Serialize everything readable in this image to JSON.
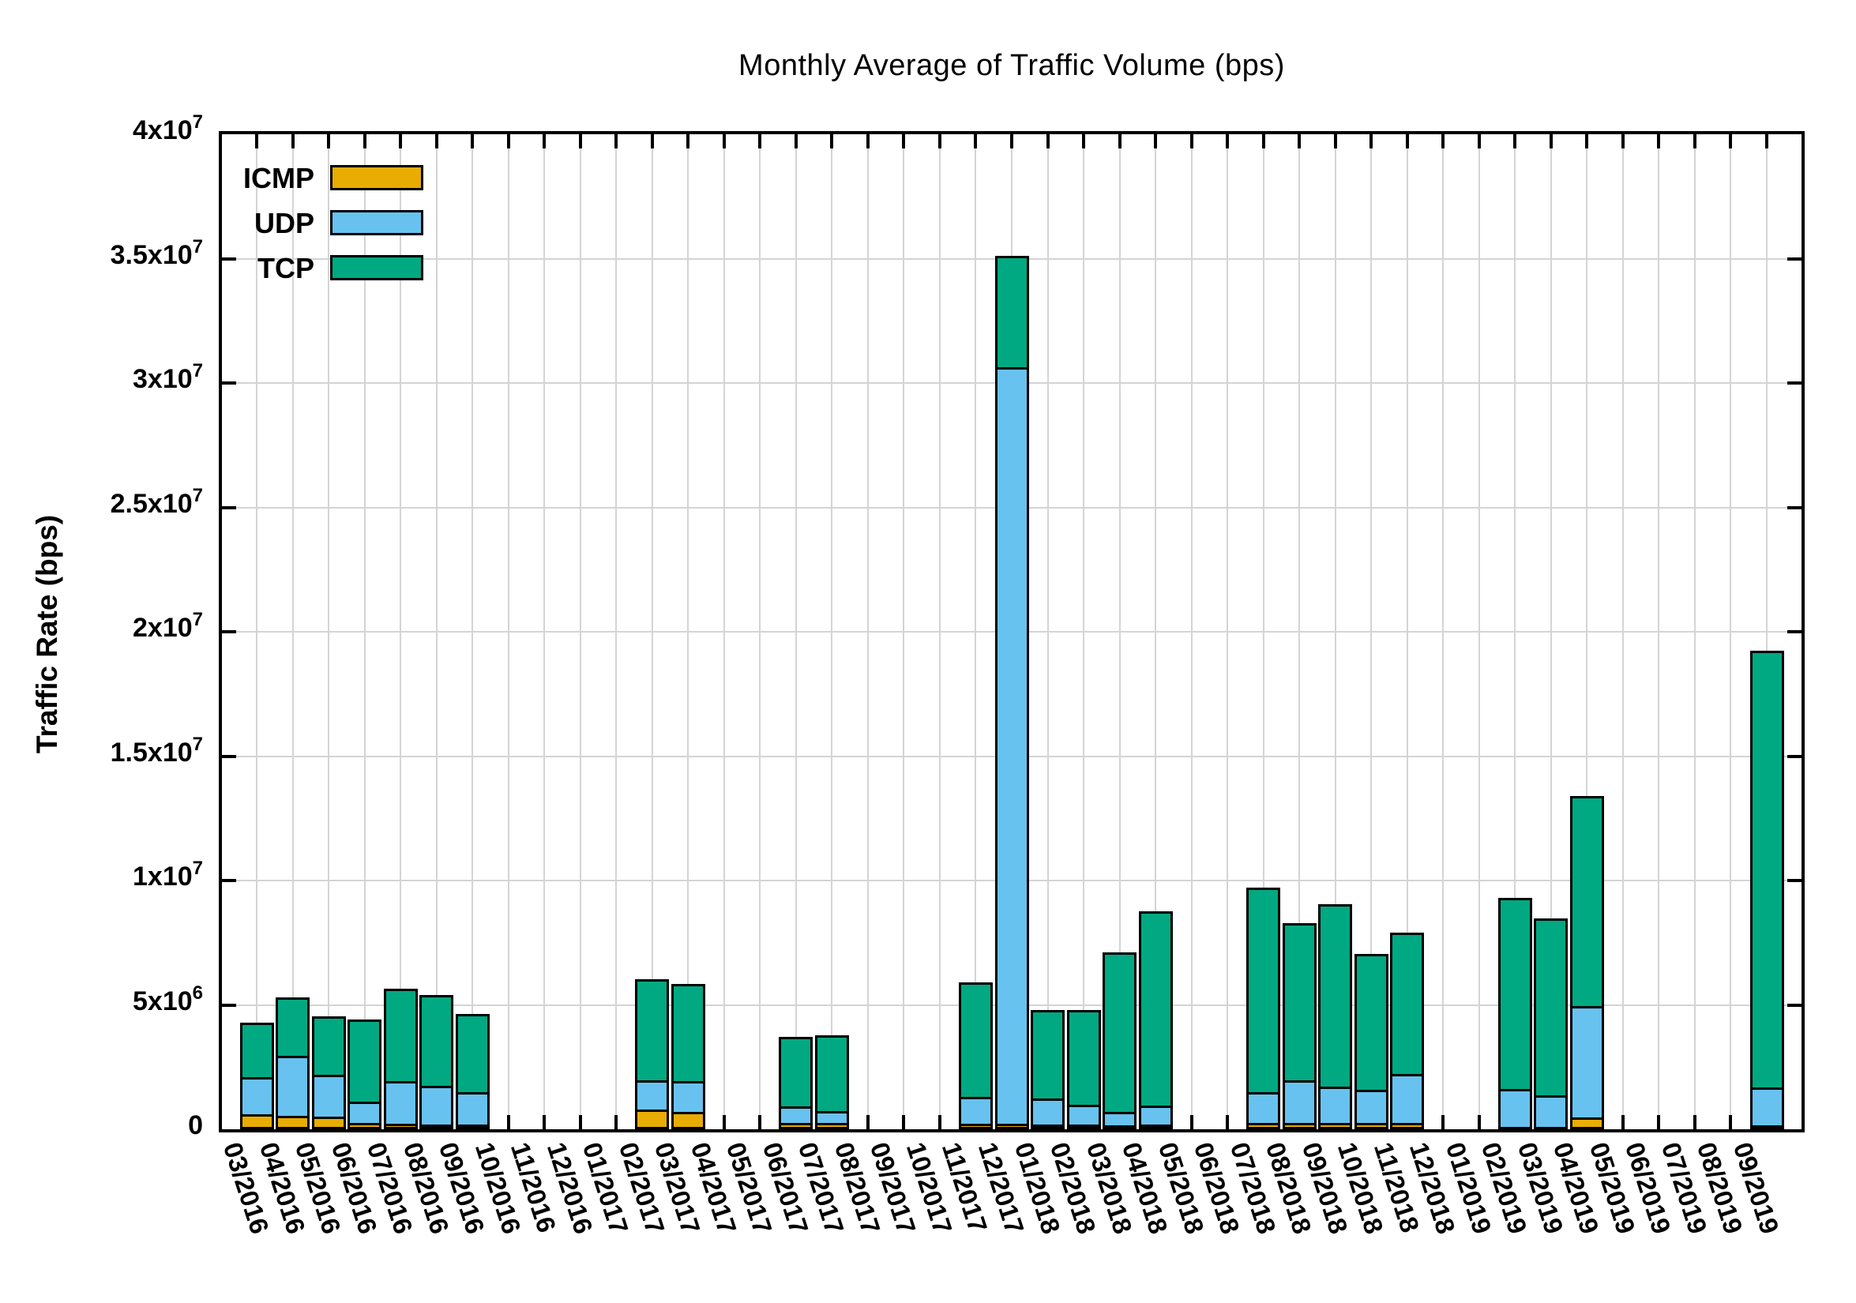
{
  "title": "Monthly Average of Traffic Volume (bps)",
  "y_axis": {
    "label": "Traffic Rate (bps)",
    "ticks": [
      {
        "value": 0,
        "mantissa": "0",
        "exponent": ""
      },
      {
        "value": 5000000,
        "mantissa": "5x10",
        "exponent": "6"
      },
      {
        "value": 10000000,
        "mantissa": "1x10",
        "exponent": "7"
      },
      {
        "value": 15000000,
        "mantissa": "1.5x10",
        "exponent": "7"
      },
      {
        "value": 20000000,
        "mantissa": "2x10",
        "exponent": "7"
      },
      {
        "value": 25000000,
        "mantissa": "2.5x10",
        "exponent": "7"
      },
      {
        "value": 30000000,
        "mantissa": "3x10",
        "exponent": "7"
      },
      {
        "value": 35000000,
        "mantissa": "3.5x10",
        "exponent": "7"
      },
      {
        "value": 40000000,
        "mantissa": "4x10",
        "exponent": "7"
      }
    ]
  },
  "legend": {
    "position": "top-left",
    "items": [
      {
        "label": "ICMP",
        "color": "#e8ad00"
      },
      {
        "label": "UDP",
        "color": "#68c2ef"
      },
      {
        "label": "TCP",
        "color": "#00a981"
      }
    ]
  },
  "colors": {
    "icmp": "#e8ad00",
    "udp": "#68c2ef",
    "tcp": "#00a981",
    "grid": "#d4d4d4",
    "axis": "#000000"
  },
  "chart_data": {
    "type": "bar",
    "stacked": true,
    "title": "Monthly Average of Traffic Volume (bps)",
    "xlabel": "",
    "ylabel": "Traffic Rate (bps)",
    "ylim": [
      0,
      40000000
    ],
    "grid": true,
    "legend_position": "top-left",
    "categories": [
      "03/2016",
      "04/2016",
      "05/2016",
      "06/2016",
      "07/2016",
      "08/2016",
      "09/2016",
      "10/2016",
      "11/2016",
      "12/2016",
      "01/2017",
      "02/2017",
      "03/2017",
      "04/2017",
      "05/2017",
      "06/2017",
      "07/2017",
      "08/2017",
      "09/2017",
      "10/2017",
      "11/2017",
      "12/2017",
      "01/2018",
      "02/2018",
      "03/2018",
      "04/2018",
      "05/2018",
      "06/2018",
      "07/2018",
      "08/2018",
      "09/2018",
      "10/2018",
      "11/2018",
      "12/2018",
      "01/2019",
      "02/2019",
      "03/2019",
      "04/2019",
      "05/2019",
      "06/2019",
      "07/2019",
      "08/2019",
      "09/2019"
    ],
    "series": [
      {
        "name": "ICMP",
        "color": "#e8ad00",
        "values": [
          550000,
          500000,
          450000,
          200000,
          180000,
          150000,
          150000,
          0,
          0,
          0,
          0,
          760000,
          650000,
          0,
          0,
          220000,
          200000,
          0,
          0,
          0,
          180000,
          170000,
          150000,
          130000,
          120000,
          150000,
          0,
          0,
          220000,
          200000,
          200000,
          200000,
          200000,
          0,
          0,
          30000,
          60000,
          420000,
          0,
          0,
          0,
          0,
          100000
        ]
      },
      {
        "name": "UDP",
        "color": "#68c2ef",
        "values": [
          1500000,
          2400000,
          1700000,
          850000,
          1700000,
          1560000,
          1280000,
          0,
          0,
          0,
          0,
          1160000,
          1230000,
          0,
          0,
          640000,
          490000,
          0,
          0,
          0,
          1080000,
          30430000,
          1030000,
          820000,
          540000,
          760000,
          0,
          0,
          1210000,
          1720000,
          1460000,
          1350000,
          1970000,
          0,
          0,
          1580000,
          1260000,
          4490000,
          0,
          0,
          0,
          0,
          1550000
        ]
      },
      {
        "name": "TCP",
        "color": "#00a981",
        "values": [
          2250000,
          2400000,
          2400000,
          3350000,
          3770000,
          3690000,
          3190000,
          0,
          0,
          0,
          0,
          4100000,
          3970000,
          0,
          0,
          2850000,
          3090000,
          0,
          0,
          0,
          4640000,
          4500000,
          3620000,
          3850000,
          6440000,
          7840000,
          0,
          0,
          8270000,
          6380000,
          7390000,
          5500000,
          5730000,
          0,
          0,
          7710000,
          7150000,
          8490000,
          0,
          0,
          0,
          0,
          17600000
        ]
      }
    ]
  }
}
